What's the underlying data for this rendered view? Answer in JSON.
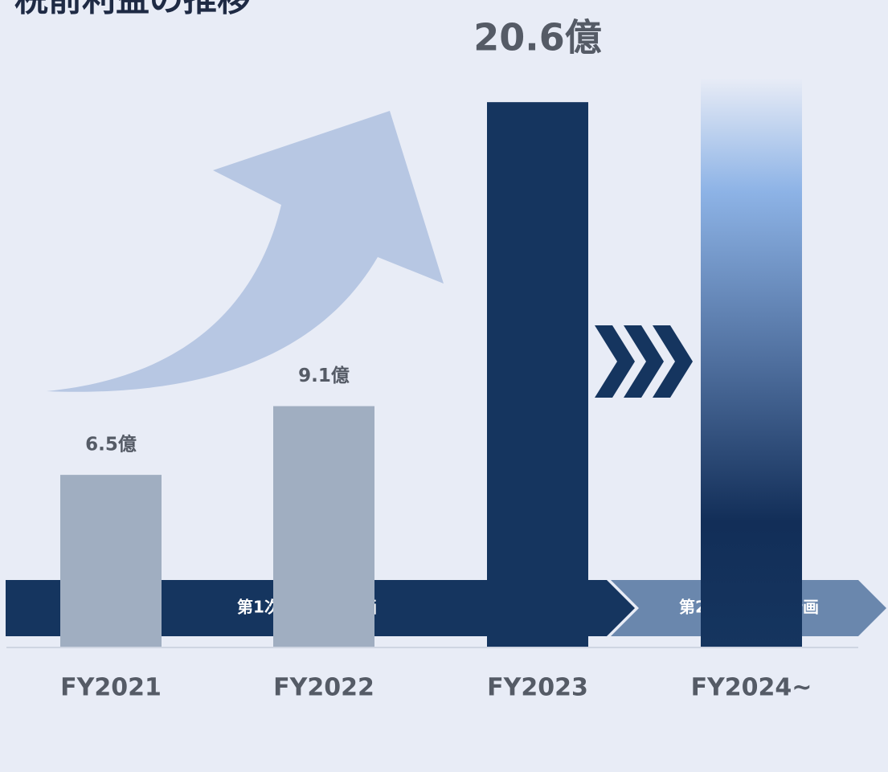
{
  "chart_data": {
    "type": "bar",
    "title": "税前利益の推移",
    "categories": [
      "FY2021",
      "FY2022",
      "FY2023",
      "FY2024~"
    ],
    "values": [
      6.5,
      9.1,
      20.6,
      null
    ],
    "value_labels": [
      "6.5億",
      "9.1億",
      "20.6億",
      null
    ],
    "colors": [
      "#a0aec1",
      "#a0aec1",
      "#15355f",
      "#15355f"
    ],
    "ylim": [
      0,
      21
    ],
    "annotations": [
      "第1次中期経営計画",
      "第2次中期経営計画"
    ]
  }
}
